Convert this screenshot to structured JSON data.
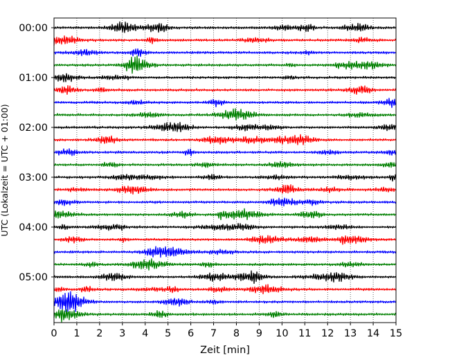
{
  "chart_data": {
    "type": "line",
    "title": "",
    "xlabel": "Zeit  [min]",
    "ylabel": "UTC (Lokalzeit = UTC + 01:00)",
    "xlim": [
      0,
      15
    ],
    "x_ticks": [
      0,
      1,
      2,
      3,
      4,
      5,
      6,
      7,
      8,
      9,
      10,
      11,
      12,
      13,
      14,
      15
    ],
    "x_tick_labels": [
      "0",
      "1",
      "2",
      "3",
      "4",
      "5",
      "6",
      "7",
      "8",
      "9",
      "10",
      "11",
      "12",
      "13",
      "14",
      "15"
    ],
    "y_tick_labels": [
      "00:00",
      "01:00",
      "02:00",
      "03:00",
      "04:00",
      "05:00"
    ],
    "traces_per_hour": 4,
    "trace_minutes": 15,
    "trace_count": 24,
    "trace_colors": [
      "#000000",
      "#ff0000",
      "#0000ff",
      "#008000"
    ],
    "grid": "vertical dotted",
    "legend": "none"
  }
}
